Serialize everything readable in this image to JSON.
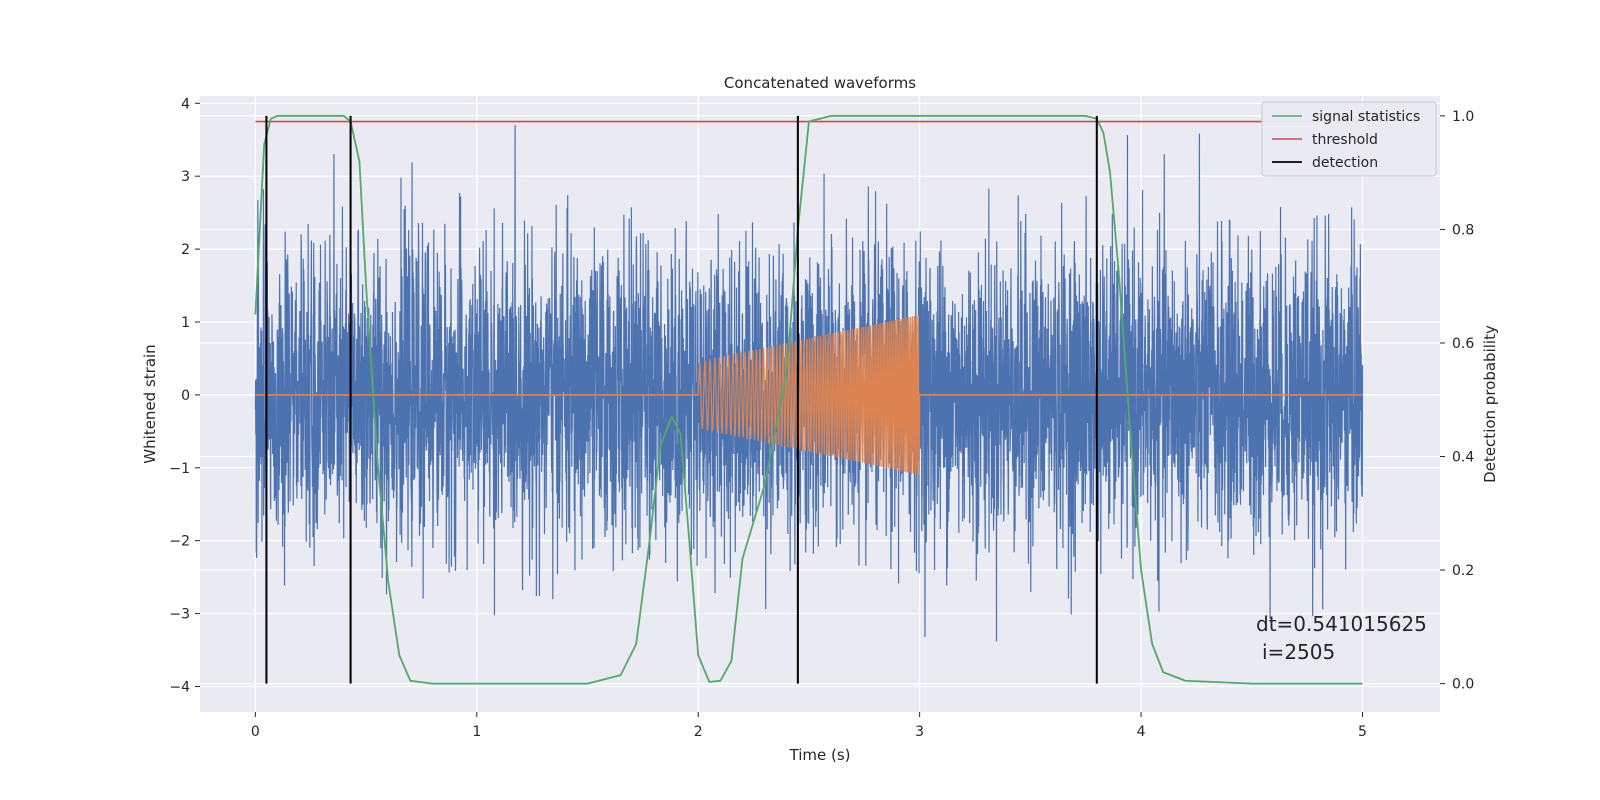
{
  "chart_data": {
    "type": "line",
    "title": "Concatenated waveforms",
    "xlabel": "Time (s)",
    "ylabel": "Whitened strain",
    "y2label": "Detection probability",
    "xlim": [
      -0.25,
      5.35
    ],
    "ylim": [
      -4.35,
      4.1
    ],
    "y2lim": [
      -0.05,
      1.035
    ],
    "xticks": [
      0,
      1,
      2,
      3,
      4,
      5
    ],
    "yticks": [
      -4,
      -3,
      -2,
      -1,
      0,
      1,
      2,
      3,
      4
    ],
    "y2ticks": [
      0.0,
      0.2,
      0.4,
      0.6,
      0.8,
      1.0
    ],
    "xtick_labels": [
      "0",
      "1",
      "2",
      "3",
      "4",
      "5"
    ],
    "ytick_labels": [
      "−4",
      "−3",
      "−2",
      "−1",
      "0",
      "1",
      "2",
      "3",
      "4"
    ],
    "y2tick_labels": [
      "0.0",
      "0.2",
      "0.4",
      "0.6",
      "0.8",
      "1.0"
    ],
    "grid": true,
    "legend_position": "top-right",
    "legend": [
      "signal statistics",
      "threshold",
      "detection"
    ],
    "series": [
      {
        "name": "noise",
        "color": "#4c72b0",
        "axis": "left",
        "description": "whitened noise, approximately unit-variance, spanning t=0 to 5 s",
        "x_range": [
          0,
          5
        ],
        "amplitude_std": 1.0
      },
      {
        "name": "injected signal",
        "color": "#dd8452",
        "axis": "left",
        "description": "chirp injected from t=2 to 3 s",
        "x_range": [
          2,
          3
        ],
        "start_amplitude": 0.45,
        "end_amplitude": 1.1
      },
      {
        "name": "signal statistics",
        "color": "#55a868",
        "axis": "right",
        "x": [
          0,
          0.02,
          0.04,
          0.07,
          0.1,
          0.2,
          0.3,
          0.4,
          0.43,
          0.47,
          0.5,
          0.55,
          0.6,
          0.65,
          0.7,
          0.8,
          1.0,
          1.5,
          1.65,
          1.72,
          1.78,
          1.83,
          1.88,
          1.92,
          1.96,
          2.0,
          2.05,
          2.1,
          2.15,
          2.2,
          2.3,
          2.4,
          2.45,
          2.5,
          2.6,
          2.8,
          3.2,
          3.6,
          3.75,
          3.8,
          3.83,
          3.86,
          3.9,
          3.95,
          4.0,
          4.05,
          4.1,
          4.2,
          4.5,
          5.0
        ],
        "y": [
          0.65,
          0.8,
          0.95,
          0.995,
          1.0,
          1.0,
          1.0,
          1.0,
          0.99,
          0.92,
          0.7,
          0.4,
          0.18,
          0.05,
          0.005,
          0.0,
          0.0,
          0.0,
          0.015,
          0.07,
          0.25,
          0.42,
          0.47,
          0.44,
          0.25,
          0.05,
          0.003,
          0.005,
          0.04,
          0.22,
          0.35,
          0.55,
          0.8,
          0.99,
          1.0,
          1.0,
          1.0,
          1.0,
          1.0,
          0.995,
          0.97,
          0.9,
          0.72,
          0.45,
          0.2,
          0.07,
          0.02,
          0.005,
          0.0,
          0.0
        ]
      },
      {
        "name": "threshold",
        "color": "#c44e52",
        "axis": "right",
        "x": [
          0,
          5
        ],
        "y": [
          0.99,
          0.99
        ]
      }
    ],
    "detections": {
      "name": "detection",
      "color": "#000000",
      "x": [
        0.05,
        0.43,
        2.45,
        3.8
      ],
      "y_range": [
        0,
        1
      ]
    },
    "annotation": {
      "line1": "dt=0.541015625",
      "line2": "i=2505"
    }
  }
}
